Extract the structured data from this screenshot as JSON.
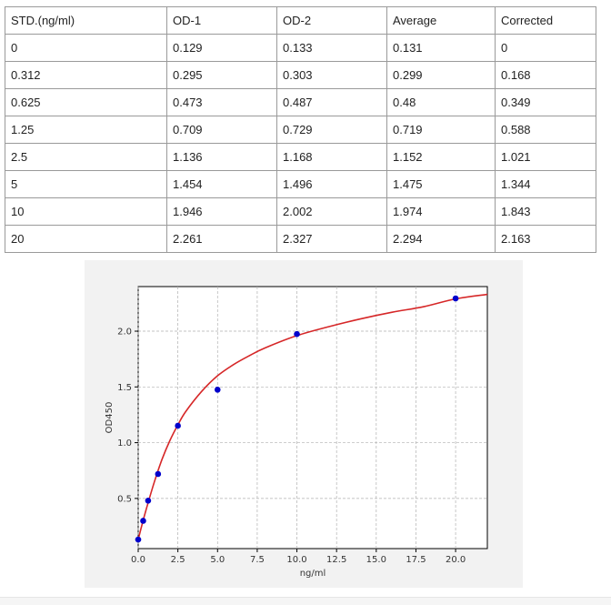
{
  "table": {
    "headers": [
      "STD.(ng/ml)",
      "OD-1",
      "OD-2",
      "Average",
      "Corrected"
    ],
    "rows": [
      [
        "0",
        "0.129",
        "0.133",
        "0.131",
        "0"
      ],
      [
        "0.312",
        "0.295",
        "0.303",
        "0.299",
        "0.168"
      ],
      [
        "0.625",
        "0.473",
        "0.487",
        "0.48",
        "0.349"
      ],
      [
        "1.25",
        "0.709",
        "0.729",
        "0.719",
        "0.588"
      ],
      [
        "2.5",
        "1.136",
        "1.168",
        "1.152",
        "1.021"
      ],
      [
        "5",
        "1.454",
        "1.496",
        "1.475",
        "1.344"
      ],
      [
        "10",
        "1.946",
        "2.002",
        "1.974",
        "1.843"
      ],
      [
        "20",
        "2.261",
        "2.327",
        "2.294",
        "2.163"
      ]
    ]
  },
  "chart_data": {
    "type": "scatter",
    "title": "",
    "xlabel": "ng/ml",
    "ylabel": "OD450",
    "xlim": [
      0,
      22
    ],
    "ylim": [
      0.05,
      2.4
    ],
    "xticks": [
      "0.0",
      "2.5",
      "5.0",
      "7.5",
      "10.0",
      "12.5",
      "15.0",
      "17.5",
      "20.0"
    ],
    "yticks": [
      "0.5",
      "1.0",
      "1.5",
      "2.0"
    ],
    "grid": true,
    "series": [
      {
        "kind": "points",
        "color": "#0000cc",
        "x": [
          0,
          0.312,
          0.625,
          1.25,
          2.5,
          5,
          10,
          20
        ],
        "y": [
          0.131,
          0.299,
          0.48,
          0.719,
          1.152,
          1.475,
          1.974,
          2.294
        ]
      },
      {
        "kind": "fit-curve",
        "color": "#d62728",
        "x": [
          0,
          0.25,
          0.5,
          1,
          1.5,
          2,
          2.5,
          3,
          4,
          5,
          6,
          7,
          8,
          10,
          12,
          14,
          16,
          18,
          20,
          22
        ],
        "y": [
          0.13,
          0.27,
          0.4,
          0.64,
          0.85,
          1.02,
          1.16,
          1.28,
          1.46,
          1.6,
          1.7,
          1.78,
          1.85,
          1.96,
          2.04,
          2.11,
          2.17,
          2.22,
          2.29,
          2.33
        ]
      }
    ]
  }
}
